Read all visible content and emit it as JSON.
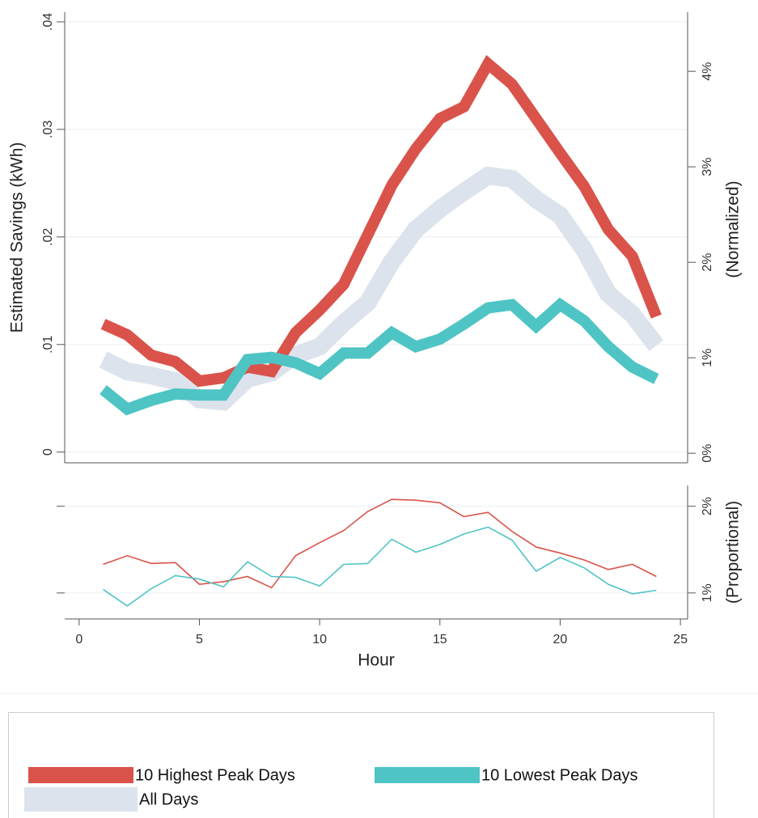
{
  "chart_data": [
    {
      "type": "line",
      "y_label": "Estimated Savings (kWh)",
      "y2_label": "(Normalized)",
      "x": [
        1,
        2,
        3,
        4,
        5,
        6,
        7,
        8,
        9,
        10,
        11,
        12,
        13,
        14,
        15,
        16,
        17,
        18,
        19,
        20,
        21,
        22,
        23,
        24
      ],
      "xlim": [
        -0.6,
        25.3
      ],
      "ylim": [
        -0.001,
        0.0409
      ],
      "yticks": [
        0,
        {
          "value": 0.01,
          "label": ".01"
        },
        {
          "value": 0.02,
          "label": ".02"
        },
        {
          "value": 0.03,
          "label": ".03"
        },
        {
          "value": 0.04,
          "label": ".04"
        }
      ],
      "y2lim": [
        -0.1,
        4.62
      ],
      "y2ticks": [
        {
          "value": 0,
          "label": "0%"
        },
        {
          "value": 1,
          "label": "1%"
        },
        {
          "value": 2,
          "label": "2%"
        },
        {
          "value": 3,
          "label": "3%"
        },
        {
          "value": 4,
          "label": "4%"
        }
      ],
      "grid": true,
      "legend": "bottom",
      "series": [
        {
          "name": "All Days",
          "color": "#dde3ec",
          "values": [
            0.0086,
            0.0075,
            0.0071,
            0.0066,
            0.0049,
            0.0047,
            0.0068,
            0.0074,
            0.009,
            0.0098,
            0.012,
            0.0139,
            0.0177,
            0.0207,
            0.0226,
            0.0242,
            0.0257,
            0.0254,
            0.0235,
            0.022,
            0.0188,
            0.0147,
            0.0128,
            0.0099
          ]
        },
        {
          "name": "10 Highest Peak Days",
          "color": "#d9534a",
          "values": [
            0.0119,
            0.0109,
            0.009,
            0.0084,
            0.0066,
            0.0069,
            0.0079,
            0.0075,
            0.0111,
            0.0132,
            0.0156,
            0.0202,
            0.0248,
            0.0282,
            0.031,
            0.0321,
            0.0361,
            0.0342,
            0.031,
            0.0278,
            0.0247,
            0.0207,
            0.0182,
            0.0126
          ]
        },
        {
          "name": "10 Lowest Peak Days",
          "color": "#4fc4c4",
          "values": [
            0.0058,
            0.004,
            0.0048,
            0.0054,
            0.0053,
            0.0053,
            0.0086,
            0.0088,
            0.0083,
            0.0073,
            0.0092,
            0.0092,
            0.0111,
            0.0098,
            0.0105,
            0.0119,
            0.0134,
            0.0137,
            0.0117,
            0.0137,
            0.0122,
            0.0098,
            0.0079,
            0.0068
          ]
        }
      ]
    },
    {
      "type": "line",
      "x_label": "Hour",
      "y2_label": "(Proportional)",
      "x": [
        1,
        2,
        3,
        4,
        5,
        6,
        7,
        8,
        9,
        10,
        11,
        12,
        13,
        14,
        15,
        16,
        17,
        18,
        19,
        20,
        21,
        22,
        23,
        24
      ],
      "xlim": [
        -0.6,
        25.3
      ],
      "xticks": [
        0,
        5,
        10,
        15,
        20,
        25
      ],
      "y2lim": [
        0.7,
        2.24
      ],
      "y2ticks": [
        {
          "value": 1,
          "label": "1%"
        },
        {
          "value": 2,
          "label": "2%"
        }
      ],
      "grid": true,
      "series": [
        {
          "name": "10 Highest Peak Days",
          "color": "#d9534a",
          "axis": "y2",
          "values": [
            1.33,
            1.43,
            1.34,
            1.35,
            1.1,
            1.13,
            1.19,
            1.06,
            1.43,
            1.58,
            1.72,
            1.94,
            2.08,
            2.07,
            2.04,
            1.88,
            1.93,
            1.71,
            1.53,
            1.46,
            1.38,
            1.27,
            1.33,
            1.19
          ]
        },
        {
          "name": "10 Lowest Peak Days",
          "color": "#4fc4c4",
          "axis": "y2",
          "values": [
            1.04,
            0.85,
            1.05,
            1.2,
            1.16,
            1.07,
            1.36,
            1.19,
            1.18,
            1.08,
            1.33,
            1.34,
            1.62,
            1.47,
            1.56,
            1.68,
            1.76,
            1.61,
            1.25,
            1.41,
            1.29,
            1.1,
            0.99,
            1.03
          ]
        }
      ]
    }
  ]
}
